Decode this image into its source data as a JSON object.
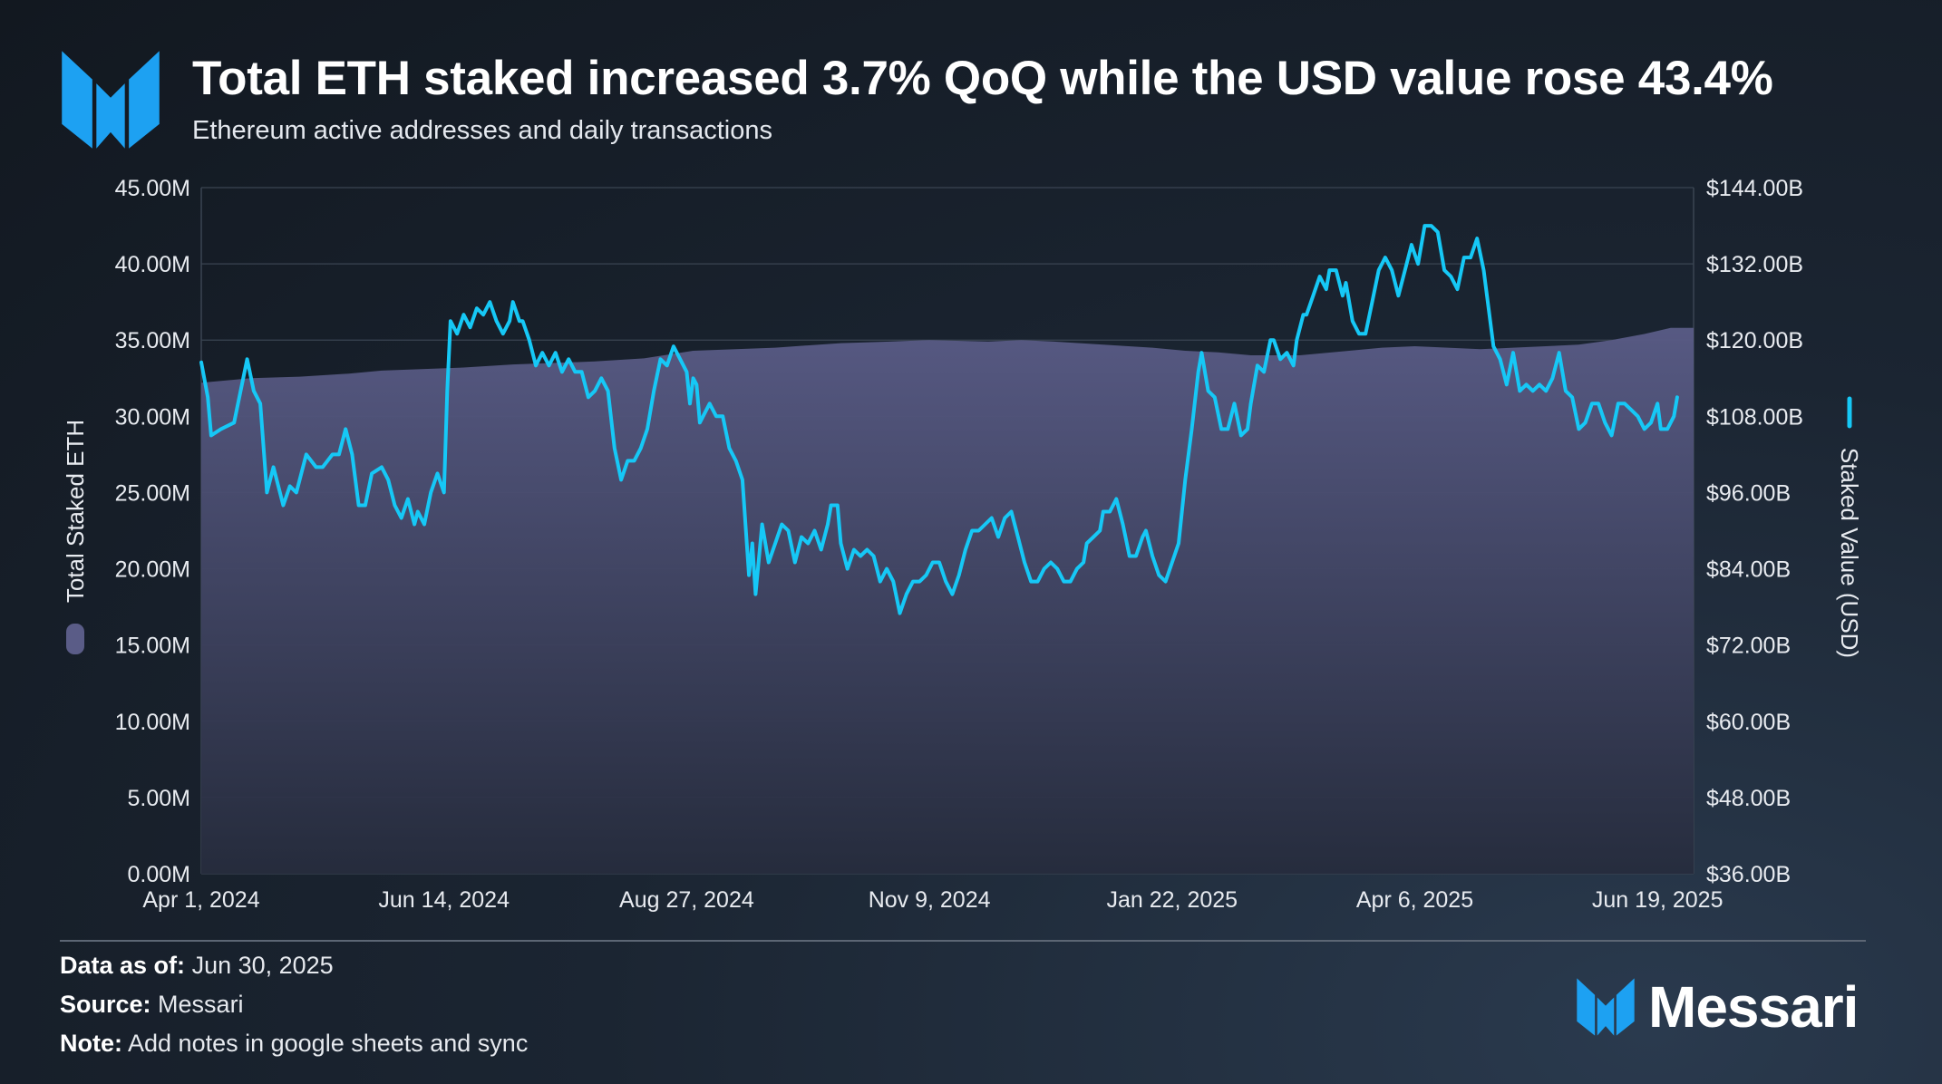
{
  "header": {
    "title": "Total ETH staked increased 3.7% QoQ while the USD value rose 43.4%",
    "subtitle": "Ethereum active addresses and daily transactions"
  },
  "footer": {
    "data_as_of_label": "Data as of:",
    "data_as_of_value": "Jun 30, 2025",
    "source_label": "Source:",
    "source_value": "Messari",
    "note_label": "Note:",
    "note_value": "Add notes in google sheets and sync"
  },
  "brand": {
    "name": "Messari",
    "logo_icon": "messari-logo-icon"
  },
  "colors": {
    "area_fill_top": "#5a5c87",
    "area_fill_bottom": "#262c3d",
    "line": "#16c8f6",
    "gridline": "#3a4452",
    "axis_text": "#e8ebf0",
    "logo_blue": "#1da1f2"
  },
  "chart_data": {
    "type": "area+line",
    "title": "Total ETH staked increased 3.7% QoQ while the USD value rose 43.4%",
    "subtitle": "Ethereum active addresses and daily transactions",
    "x_range": [
      "2024-04-01",
      "2025-06-30"
    ],
    "x_tick_labels": [
      "Apr 1, 2024",
      "Jun 14, 2024",
      "Aug 27, 2024",
      "Nov 9, 2024",
      "Jan 22, 2025",
      "Apr 6, 2025",
      "Jun 19, 2025"
    ],
    "x_tick_days": [
      0,
      74,
      148,
      222,
      296,
      370,
      444
    ],
    "x_max_days": 455,
    "left_axis": {
      "label": "Total Staked ETH",
      "range": [
        0,
        45
      ],
      "unit": "M",
      "tick_labels": [
        "0.00M",
        "5.00M",
        "10.00M",
        "15.00M",
        "20.00M",
        "25.00M",
        "30.00M",
        "35.00M",
        "40.00M",
        "45.00M"
      ]
    },
    "right_axis": {
      "label": "Staked Value (USD)",
      "range": [
        36,
        144
      ],
      "unit": "B",
      "tick_labels": [
        "$36.00B",
        "$48.00B",
        "$60.00B",
        "$72.00B",
        "$84.00B",
        "$96.00B",
        "$108.00B",
        "$120.00B",
        "$132.00B",
        "$144.00B"
      ]
    },
    "series": [
      {
        "name": "Total Staked ETH",
        "type": "area",
        "axis": "left",
        "points": [
          [
            0,
            32.2
          ],
          [
            15,
            32.5
          ],
          [
            30,
            32.6
          ],
          [
            45,
            32.8
          ],
          [
            55,
            33.0
          ],
          [
            80,
            33.2
          ],
          [
            95,
            33.4
          ],
          [
            120,
            33.6
          ],
          [
            135,
            33.8
          ],
          [
            150,
            34.3
          ],
          [
            175,
            34.5
          ],
          [
            195,
            34.8
          ],
          [
            210,
            34.9
          ],
          [
            222,
            35.0
          ],
          [
            240,
            34.9
          ],
          [
            250,
            35.0
          ],
          [
            260,
            34.9
          ],
          [
            275,
            34.7
          ],
          [
            290,
            34.5
          ],
          [
            300,
            34.3
          ],
          [
            310,
            34.2
          ],
          [
            320,
            34.0
          ],
          [
            335,
            34.0
          ],
          [
            350,
            34.3
          ],
          [
            360,
            34.5
          ],
          [
            370,
            34.6
          ],
          [
            380,
            34.5
          ],
          [
            390,
            34.4
          ],
          [
            400,
            34.5
          ],
          [
            410,
            34.6
          ],
          [
            420,
            34.7
          ],
          [
            430,
            35.0
          ],
          [
            440,
            35.4
          ],
          [
            448,
            35.8
          ],
          [
            455,
            35.8
          ]
        ]
      },
      {
        "name": "Staked Value (USD)",
        "type": "line",
        "axis": "right",
        "points": [
          [
            0,
            116.5
          ],
          [
            2,
            111
          ],
          [
            3,
            105
          ],
          [
            6,
            106
          ],
          [
            10,
            107
          ],
          [
            12,
            112
          ],
          [
            14,
            117
          ],
          [
            16,
            112
          ],
          [
            18,
            110
          ],
          [
            20,
            96
          ],
          [
            22,
            100
          ],
          [
            25,
            94
          ],
          [
            27,
            97
          ],
          [
            29,
            96
          ],
          [
            32,
            102
          ],
          [
            35,
            100
          ],
          [
            37,
            100
          ],
          [
            40,
            102
          ],
          [
            42,
            102
          ],
          [
            44,
            106
          ],
          [
            46,
            102
          ],
          [
            48,
            94
          ],
          [
            50,
            94
          ],
          [
            52,
            99
          ],
          [
            55,
            100
          ],
          [
            57,
            98
          ],
          [
            59,
            94
          ],
          [
            61,
            92
          ],
          [
            63,
            95
          ],
          [
            65,
            91
          ],
          [
            66,
            93
          ],
          [
            68,
            91
          ],
          [
            70,
            96
          ],
          [
            72,
            99
          ],
          [
            74,
            96
          ],
          [
            75,
            112
          ],
          [
            76,
            123
          ],
          [
            78,
            121
          ],
          [
            80,
            124
          ],
          [
            82,
            122
          ],
          [
            84,
            125
          ],
          [
            86,
            124
          ],
          [
            88,
            126
          ],
          [
            90,
            123
          ],
          [
            92,
            121
          ],
          [
            94,
            123
          ],
          [
            95,
            126
          ],
          [
            97,
            123
          ],
          [
            98,
            123
          ],
          [
            100,
            120
          ],
          [
            102,
            116
          ],
          [
            104,
            118
          ],
          [
            106,
            116
          ],
          [
            108,
            118
          ],
          [
            110,
            115
          ],
          [
            112,
            117
          ],
          [
            114,
            115
          ],
          [
            116,
            115
          ],
          [
            118,
            111
          ],
          [
            120,
            112
          ],
          [
            122,
            114
          ],
          [
            124,
            112
          ],
          [
            126,
            103
          ],
          [
            128,
            98
          ],
          [
            130,
            101
          ],
          [
            132,
            101
          ],
          [
            134,
            103
          ],
          [
            136,
            106
          ],
          [
            138,
            112
          ],
          [
            140,
            117
          ],
          [
            142,
            116
          ],
          [
            144,
            119
          ],
          [
            146,
            117
          ],
          [
            148,
            115
          ],
          [
            149,
            110
          ],
          [
            150,
            114
          ],
          [
            151,
            113
          ],
          [
            152,
            107
          ],
          [
            155,
            110
          ],
          [
            157,
            108
          ],
          [
            159,
            108
          ],
          [
            161,
            103
          ],
          [
            163,
            101
          ],
          [
            165,
            98
          ],
          [
            167,
            83
          ],
          [
            168,
            88
          ],
          [
            169,
            80
          ],
          [
            171,
            91
          ],
          [
            173,
            85
          ],
          [
            175,
            88
          ],
          [
            177,
            91
          ],
          [
            179,
            90
          ],
          [
            181,
            85
          ],
          [
            183,
            89
          ],
          [
            185,
            88
          ],
          [
            187,
            90
          ],
          [
            189,
            87
          ],
          [
            191,
            91
          ],
          [
            192,
            94
          ],
          [
            194,
            94
          ],
          [
            195,
            88
          ],
          [
            197,
            84
          ],
          [
            199,
            87
          ],
          [
            201,
            86
          ],
          [
            203,
            87
          ],
          [
            205,
            86
          ],
          [
            207,
            82
          ],
          [
            209,
            84
          ],
          [
            211,
            82
          ],
          [
            213,
            77
          ],
          [
            215,
            80
          ],
          [
            217,
            82
          ],
          [
            219,
            82
          ],
          [
            221,
            83
          ],
          [
            223,
            85
          ],
          [
            225,
            85
          ],
          [
            227,
            82
          ],
          [
            229,
            80
          ],
          [
            231,
            83
          ],
          [
            233,
            87
          ],
          [
            235,
            90
          ],
          [
            237,
            90
          ],
          [
            239,
            91
          ],
          [
            241,
            92
          ],
          [
            243,
            89
          ],
          [
            245,
            92
          ],
          [
            247,
            93
          ],
          [
            249,
            89
          ],
          [
            251,
            85
          ],
          [
            253,
            82
          ],
          [
            255,
            82
          ],
          [
            257,
            84
          ],
          [
            259,
            85
          ],
          [
            261,
            84
          ],
          [
            263,
            82
          ],
          [
            265,
            82
          ],
          [
            267,
            84
          ],
          [
            269,
            85
          ],
          [
            270,
            88
          ],
          [
            272,
            89
          ],
          [
            274,
            90
          ],
          [
            275,
            93
          ],
          [
            277,
            93
          ],
          [
            279,
            95
          ],
          [
            281,
            91
          ],
          [
            283,
            86
          ],
          [
            285,
            86
          ],
          [
            287,
            89
          ],
          [
            288,
            90
          ],
          [
            290,
            86
          ],
          [
            292,
            83
          ],
          [
            294,
            82
          ],
          [
            296,
            85
          ],
          [
            298,
            88
          ],
          [
            300,
            98
          ],
          [
            302,
            106
          ],
          [
            304,
            115
          ],
          [
            305,
            118
          ],
          [
            307,
            112
          ],
          [
            309,
            111
          ],
          [
            311,
            106
          ],
          [
            313,
            106
          ],
          [
            315,
            110
          ],
          [
            317,
            105
          ],
          [
            319,
            106
          ],
          [
            320,
            110
          ],
          [
            322,
            116
          ],
          [
            324,
            115
          ],
          [
            326,
            120
          ],
          [
            327,
            120
          ],
          [
            329,
            117
          ],
          [
            331,
            118
          ],
          [
            333,
            116
          ],
          [
            334,
            120
          ],
          [
            336,
            124
          ],
          [
            337,
            124
          ],
          [
            339,
            127
          ],
          [
            341,
            130
          ],
          [
            343,
            128
          ],
          [
            344,
            131
          ],
          [
            346,
            131
          ],
          [
            348,
            127
          ],
          [
            349,
            129
          ],
          [
            351,
            123
          ],
          [
            353,
            121
          ],
          [
            355,
            121
          ],
          [
            357,
            126
          ],
          [
            359,
            131
          ],
          [
            361,
            133
          ],
          [
            363,
            131
          ],
          [
            365,
            127
          ],
          [
            367,
            131
          ],
          [
            369,
            135
          ],
          [
            371,
            132
          ],
          [
            373,
            138
          ],
          [
            375,
            138
          ],
          [
            377,
            137
          ],
          [
            379,
            131
          ],
          [
            381,
            130
          ],
          [
            383,
            128
          ],
          [
            385,
            133
          ],
          [
            387,
            133
          ],
          [
            389,
            136
          ],
          [
            391,
            131
          ],
          [
            392,
            127
          ],
          [
            394,
            119
          ],
          [
            396,
            117
          ],
          [
            398,
            113
          ],
          [
            400,
            118
          ],
          [
            402,
            112
          ],
          [
            404,
            113
          ],
          [
            406,
            112
          ],
          [
            408,
            113
          ],
          [
            410,
            112
          ],
          [
            412,
            114
          ],
          [
            414,
            118
          ],
          [
            416,
            112
          ],
          [
            418,
            111
          ],
          [
            420,
            106
          ],
          [
            422,
            107
          ],
          [
            424,
            110
          ],
          [
            426,
            110
          ],
          [
            428,
            107
          ],
          [
            430,
            105
          ],
          [
            432,
            110
          ],
          [
            434,
            110
          ],
          [
            436,
            109
          ],
          [
            438,
            108
          ],
          [
            440,
            106
          ],
          [
            442,
            107
          ],
          [
            444,
            110
          ],
          [
            445,
            106
          ],
          [
            447,
            106
          ],
          [
            449,
            108
          ],
          [
            450,
            111
          ]
        ]
      }
    ],
    "legend": [
      {
        "label": "Total Staked ETH",
        "marker": "area-swatch",
        "position": "left-axis"
      },
      {
        "label": "Staked Value (USD)",
        "marker": "line-swatch",
        "position": "right-axis"
      }
    ],
    "grid": true
  }
}
